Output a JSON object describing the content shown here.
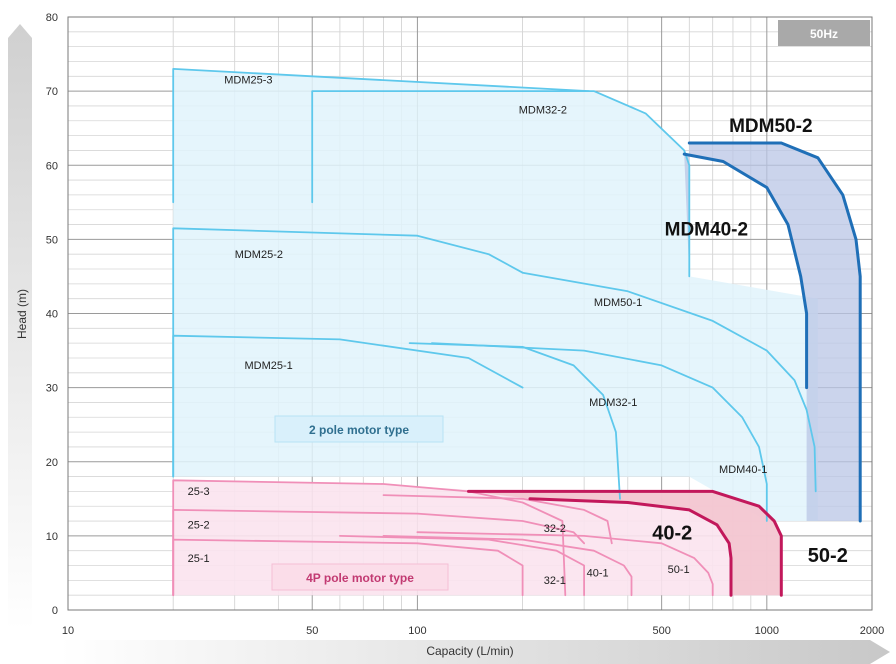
{
  "chart_data": {
    "type": "line",
    "xlabel": "Capacity (L/min)",
    "ylabel": "Head (m)",
    "xscale": "log",
    "xlim": [
      10,
      2000
    ],
    "ylim": [
      0,
      80
    ],
    "x_ticks": [
      "10",
      "50",
      "100",
      "500",
      "1000",
      "2000"
    ],
    "y_ticks": [
      "0",
      "10",
      "20",
      "30",
      "40",
      "50",
      "60",
      "70",
      "80"
    ],
    "grid": true,
    "frequency_badge": "50Hz",
    "groups": [
      {
        "label": "2 pole motor type",
        "color": "#5ec8ec",
        "fill": "#e1f3fb"
      },
      {
        "label": "4P pole motor type",
        "color": "#f08fb8",
        "fill": "#fbe3ee"
      }
    ],
    "series": [
      {
        "name": "MDM25-3",
        "group": 0,
        "x": [
          20,
          20,
          310
        ],
        "y": [
          55,
          73,
          70
        ]
      },
      {
        "name": "MDM32-2",
        "group": 0,
        "x": [
          50,
          50,
          320,
          450,
          580,
          600,
          600
        ],
        "y": [
          55,
          70,
          70,
          67,
          62,
          60,
          45
        ]
      },
      {
        "name": "MDM25-2",
        "group": 0,
        "x": [
          20,
          20,
          100,
          160,
          200
        ],
        "y": [
          18,
          51.5,
          50.5,
          48,
          45.5
        ]
      },
      {
        "name": "MDM50-1",
        "group": 0,
        "x": [
          200,
          400,
          700,
          1000,
          1200,
          1300,
          1370,
          1380
        ],
        "y": [
          45.5,
          43,
          39,
          35,
          31,
          27,
          22,
          16
        ]
      },
      {
        "name": "MDM25-1",
        "group": 0,
        "x": [
          20,
          20,
          60,
          140,
          200
        ],
        "y": [
          18,
          37,
          36.5,
          34,
          30
        ]
      },
      {
        "name": "MDM32-1",
        "group": 0,
        "x": [
          95,
          200,
          280,
          340,
          370,
          380
        ],
        "y": [
          36,
          35.5,
          33,
          29,
          24,
          15
        ]
      },
      {
        "name": "MDM40-1",
        "group": 0,
        "x": [
          110,
          300,
          500,
          700,
          850,
          950,
          1000,
          1000
        ],
        "y": [
          36,
          35,
          33,
          30,
          26,
          22,
          17,
          12
        ]
      },
      {
        "name": "MDM40-2",
        "group": 0,
        "x": [
          580,
          750,
          1000,
          1150,
          1250,
          1300,
          1300
        ],
        "y": [
          61.5,
          60.5,
          57,
          52,
          45,
          40,
          30
        ]
      },
      {
        "name": "MDM50-2",
        "group": 0,
        "x": [
          600,
          1100,
          1400,
          1650,
          1800,
          1850,
          1850
        ],
        "y": [
          63,
          63,
          61,
          56,
          50,
          45,
          12
        ]
      },
      {
        "name": "25-3",
        "group": 1,
        "x": [
          20,
          20,
          80,
          140,
          200,
          260,
          265
        ],
        "y": [
          2,
          17.5,
          17,
          16,
          14.5,
          12,
          2
        ]
      },
      {
        "name": "25-2",
        "group": 1,
        "x": [
          20,
          20,
          100,
          200,
          280,
          300
        ],
        "y": [
          2,
          13.5,
          13,
          12,
          10.5,
          9
        ]
      },
      {
        "name": "25-1",
        "group": 1,
        "x": [
          20,
          20,
          100,
          170,
          200,
          200
        ],
        "y": [
          2,
          9.5,
          9,
          8,
          6,
          2
        ]
      },
      {
        "name": "32-2",
        "group": 1,
        "x": [
          80,
          200,
          300,
          350,
          360
        ],
        "y": [
          15.5,
          15,
          13.5,
          12,
          9
        ]
      },
      {
        "name": "32-1",
        "group": 1,
        "x": [
          60,
          160,
          250,
          300,
          300
        ],
        "y": [
          10,
          9.5,
          8,
          6,
          2
        ]
      },
      {
        "name": "40-1",
        "group": 1,
        "x": [
          80,
          200,
          320,
          390,
          410,
          410
        ],
        "y": [
          10,
          9.5,
          8,
          6,
          4.5,
          2
        ]
      },
      {
        "name": "50-1",
        "group": 1,
        "x": [
          100,
          300,
          500,
          620,
          680,
          700,
          700
        ],
        "y": [
          10.5,
          10,
          9,
          7,
          5,
          3.5,
          2
        ]
      },
      {
        "name": "40-2",
        "group": 2,
        "x": [
          210,
          400,
          600,
          720,
          780,
          790,
          790
        ],
        "y": [
          15,
          14.5,
          13.5,
          11.5,
          9,
          7,
          2
        ]
      },
      {
        "name": "50-2",
        "group": 2,
        "x": [
          140,
          700,
          950,
          1050,
          1100,
          1100
        ],
        "y": [
          16,
          16,
          14,
          12,
          10,
          2
        ]
      }
    ],
    "annotations": [
      {
        "text": "MDM25-3",
        "x": 28,
        "y": 71,
        "style": "small"
      },
      {
        "text": "MDM32-2",
        "x": 195,
        "y": 67,
        "style": "small"
      },
      {
        "text": "MDM25-2",
        "x": 30,
        "y": 47.5,
        "style": "small"
      },
      {
        "text": "MDM50-1",
        "x": 320,
        "y": 41,
        "style": "small"
      },
      {
        "text": "MDM25-1",
        "x": 32,
        "y": 32.5,
        "style": "small"
      },
      {
        "text": "MDM32-1",
        "x": 310,
        "y": 27.5,
        "style": "small"
      },
      {
        "text": "MDM40-1",
        "x": 730,
        "y": 18.5,
        "style": "small"
      },
      {
        "text": "MDM50-2",
        "x": 780,
        "y": 64.5,
        "style": "big"
      },
      {
        "text": "MDM40-2",
        "x": 510,
        "y": 50.5,
        "style": "big"
      },
      {
        "text": "25-3",
        "x": 22,
        "y": 15.5,
        "style": "small"
      },
      {
        "text": "25-2",
        "x": 22,
        "y": 11,
        "style": "small"
      },
      {
        "text": "25-1",
        "x": 22,
        "y": 6.5,
        "style": "small"
      },
      {
        "text": "32-2",
        "x": 230,
        "y": 10.5,
        "style": "small"
      },
      {
        "text": "40-2",
        "x": 470,
        "y": 9.5,
        "style": "big"
      },
      {
        "text": "50-2",
        "x": 1310,
        "y": 6.5,
        "style": "big"
      },
      {
        "text": "32-1",
        "x": 230,
        "y": 3.5,
        "style": "small"
      },
      {
        "text": "40-1",
        "x": 305,
        "y": 4.5,
        "style": "small"
      },
      {
        "text": "50-1",
        "x": 520,
        "y": 5,
        "style": "small"
      }
    ]
  }
}
